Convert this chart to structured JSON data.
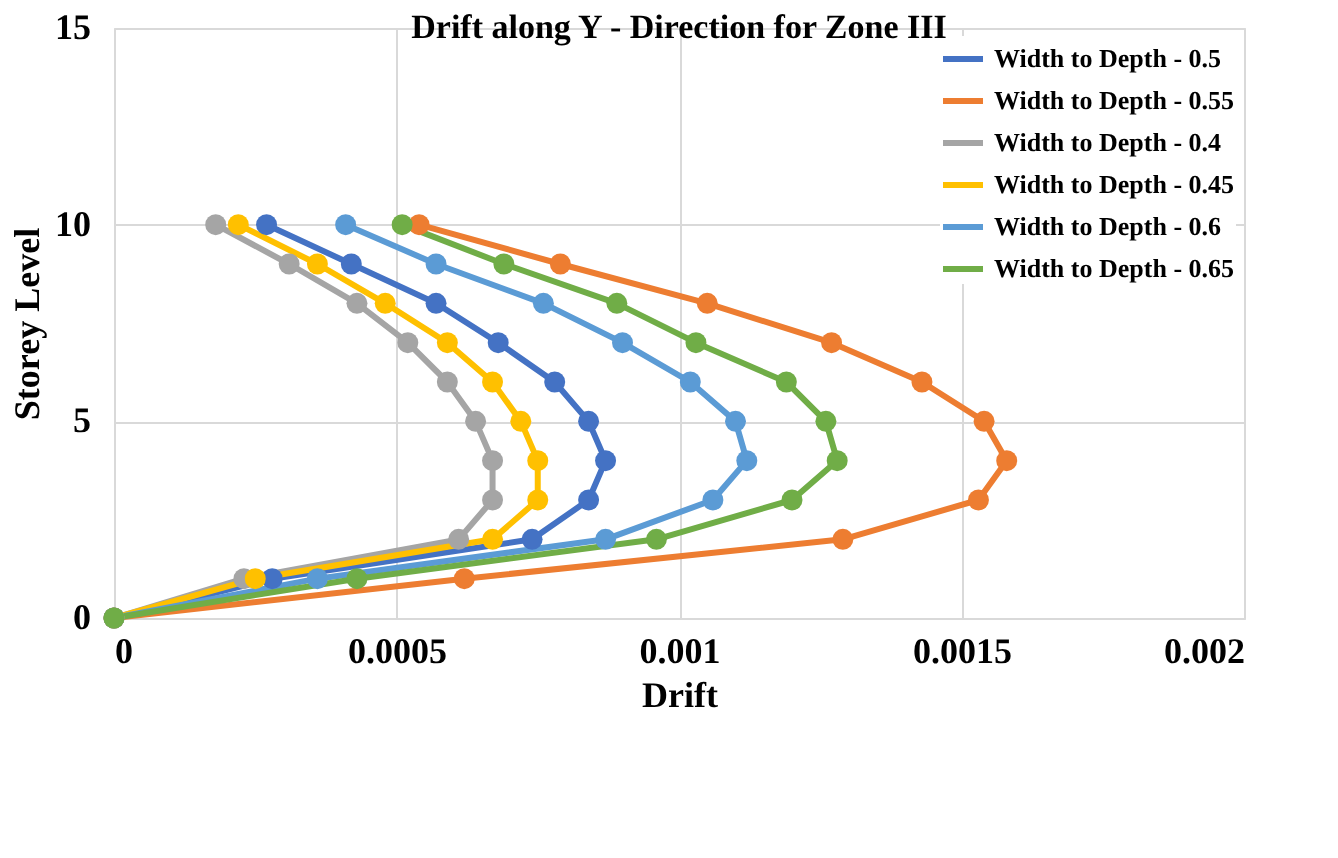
{
  "chart_data": {
    "type": "line",
    "title": "Drift along Y - Direction for Zone III",
    "xlabel": "Drift",
    "ylabel": "Storey Level",
    "xlim": [
      0,
      0.002
    ],
    "xticks": [
      0,
      0.0005,
      0.001,
      0.0015,
      0.002
    ],
    "ylim": [
      0,
      15
    ],
    "yticks": [
      0,
      5,
      10,
      15
    ],
    "grid": true,
    "legend": "top right",
    "marker": "circle",
    "line_style": "solid",
    "series": [
      {
        "name": "Width to Depth - 0.5",
        "color": "#4472c4",
        "x": [
          0,
          0.00028,
          0.00074,
          0.00084,
          0.00087,
          0.00084,
          0.00078,
          0.00068,
          0.00057,
          0.00042,
          0.00027
        ],
        "values": [
          0,
          1,
          2,
          3,
          4,
          5,
          6,
          7,
          8,
          9,
          10
        ]
      },
      {
        "name": "Width to Depth - 0.55",
        "color": "#ed7d31",
        "x": [
          0,
          0.00062,
          0.00129,
          0.00153,
          0.00158,
          0.00154,
          0.00143,
          0.00127,
          0.00105,
          0.00079,
          0.00054
        ],
        "values": [
          0,
          1,
          2,
          3,
          4,
          5,
          6,
          7,
          8,
          9,
          10
        ]
      },
      {
        "name": "Width to Depth - 0.4",
        "color": "#a5a5a5",
        "x": [
          0,
          0.00023,
          0.00061,
          0.00067,
          0.00067,
          0.00064,
          0.00059,
          0.00052,
          0.00043,
          0.00031,
          0.00018
        ],
        "values": [
          0,
          1,
          2,
          3,
          4,
          5,
          6,
          7,
          8,
          9,
          10
        ]
      },
      {
        "name": "Width to Depth - 0.45",
        "color": "#ffc000",
        "x": [
          0,
          0.00025,
          0.00067,
          0.00075,
          0.00075,
          0.00072,
          0.00067,
          0.00059,
          0.00048,
          0.00036,
          0.00022
        ],
        "values": [
          0,
          1,
          2,
          3,
          4,
          5,
          6,
          7,
          8,
          9,
          10
        ]
      },
      {
        "name": "Width to Depth - 0.6",
        "color": "#5b9bd5",
        "x": [
          0,
          0.00036,
          0.00087,
          0.00106,
          0.00112,
          0.0011,
          0.00102,
          0.0009,
          0.00076,
          0.00057,
          0.00041
        ],
        "values": [
          0,
          1,
          2,
          3,
          4,
          5,
          6,
          7,
          8,
          9,
          10
        ]
      },
      {
        "name": "Width to Depth - 0.65",
        "color": "#70ad47",
        "x": [
          0,
          0.00043,
          0.00096,
          0.0012,
          0.00128,
          0.00126,
          0.00119,
          0.00103,
          0.00089,
          0.00069,
          0.00051
        ],
        "values": [
          0,
          1,
          2,
          3,
          4,
          5,
          6,
          7,
          8,
          9,
          10
        ]
      }
    ]
  }
}
